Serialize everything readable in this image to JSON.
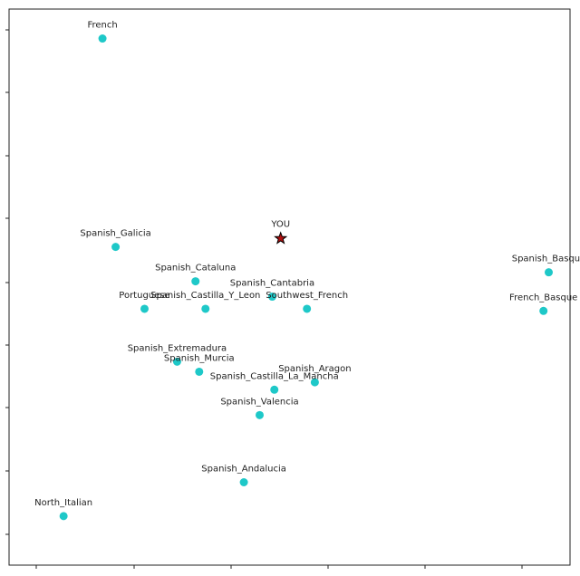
{
  "chart_data": {
    "type": "scatter",
    "title": "",
    "xlabel": "",
    "ylabel": "",
    "xlim": [
      0,
      1
    ],
    "ylim": [
      0,
      1
    ],
    "grid": false,
    "x_ticks": 6,
    "y_ticks": 9,
    "point_color": "#1ec8c8",
    "marker_color": "#b01010",
    "points": [
      {
        "label": "French",
        "x": 0.126,
        "y": 0.958
      },
      {
        "label": "Spanish_Galicia",
        "x": 0.151,
        "y": 0.564
      },
      {
        "label": "Spanish_Cataluna",
        "x": 0.303,
        "y": 0.499
      },
      {
        "label": "Portuguese",
        "x": 0.206,
        "y": 0.447
      },
      {
        "label": "Spanish_Castilla_Y_Leon",
        "x": 0.322,
        "y": 0.447
      },
      {
        "label": "Spanish_Cantabria",
        "x": 0.449,
        "y": 0.47
      },
      {
        "label": "Southwest_French",
        "x": 0.515,
        "y": 0.447
      },
      {
        "label": "Spanish_Basque",
        "x": 0.975,
        "y": 0.516
      },
      {
        "label": "French_Basque",
        "x": 0.965,
        "y": 0.443
      },
      {
        "label": "Spanish_Extremadura",
        "x": 0.268,
        "y": 0.347
      },
      {
        "label": "Spanish_Murcia",
        "x": 0.31,
        "y": 0.328
      },
      {
        "label": "Spanish_Aragon",
        "x": 0.53,
        "y": 0.308
      },
      {
        "label": "Spanish_Castilla_La_Mancha",
        "x": 0.453,
        "y": 0.294
      },
      {
        "label": "Spanish_Valencia",
        "x": 0.425,
        "y": 0.246
      },
      {
        "label": "Spanish_Andalucia",
        "x": 0.395,
        "y": 0.119
      },
      {
        "label": "North_Italian",
        "x": 0.052,
        "y": 0.055
      }
    ],
    "highlight": {
      "label": "YOU",
      "x": 0.465,
      "y": 0.58,
      "marker": "star"
    }
  }
}
